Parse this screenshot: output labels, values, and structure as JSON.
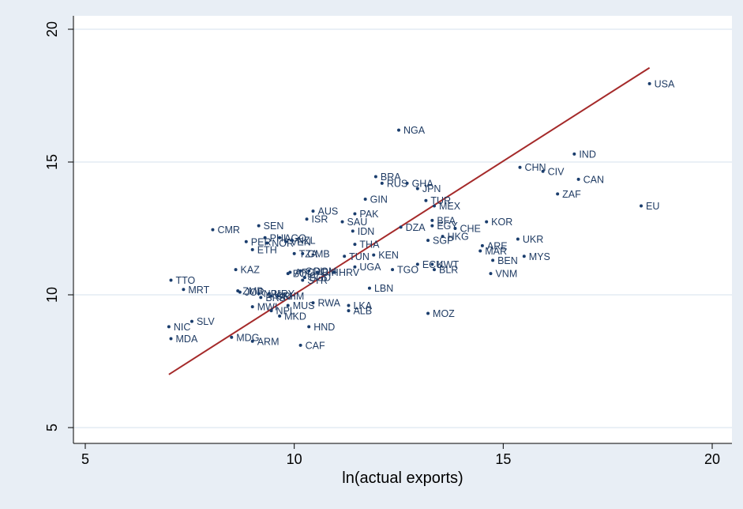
{
  "chart_data": {
    "type": "scatter",
    "title": "",
    "xlabel": "ln(actual exports)",
    "ylabel": "",
    "xlim": [
      5,
      20
    ],
    "ylim": [
      5,
      20
    ],
    "xticks": [
      "5",
      "10",
      "15",
      "20"
    ],
    "yticks": [
      "5",
      "10",
      "15",
      "20"
    ],
    "grid": "horizontal",
    "colors": {
      "outer_background": "#e8eef5",
      "plot_background": "#ffffff",
      "points": "#1a3d6d",
      "fit_line": "#a52a2a",
      "grid": "#dde8f0"
    },
    "fit_line": {
      "x": [
        7.0,
        18.5
      ],
      "y": [
        7.0,
        18.55
      ]
    },
    "points": [
      {
        "label": "USA",
        "x": 18.5,
        "y": 17.95
      },
      {
        "label": "NGA",
        "x": 12.5,
        "y": 16.2
      },
      {
        "label": "IND",
        "x": 16.7,
        "y": 15.3
      },
      {
        "label": "CHN",
        "x": 15.4,
        "y": 14.8
      },
      {
        "label": "CIV",
        "x": 15.95,
        "y": 14.65
      },
      {
        "label": "CAN",
        "x": 16.8,
        "y": 14.35
      },
      {
        "label": "BRA",
        "x": 11.95,
        "y": 14.45
      },
      {
        "label": "RUS",
        "x": 12.1,
        "y": 14.2
      },
      {
        "label": "GHA",
        "x": 12.7,
        "y": 14.2
      },
      {
        "label": "JPN",
        "x": 12.95,
        "y": 14.0
      },
      {
        "label": "ZAF",
        "x": 16.3,
        "y": 13.8
      },
      {
        "label": "EU",
        "x": 18.3,
        "y": 13.35
      },
      {
        "label": "GIN",
        "x": 11.7,
        "y": 13.6
      },
      {
        "label": "TUR",
        "x": 13.15,
        "y": 13.55
      },
      {
        "label": "MEX",
        "x": 13.35,
        "y": 13.35
      },
      {
        "label": "AUS",
        "x": 10.45,
        "y": 13.15
      },
      {
        "label": "PAK",
        "x": 11.45,
        "y": 13.05
      },
      {
        "label": "ISR",
        "x": 10.3,
        "y": 12.85
      },
      {
        "label": "SAU",
        "x": 11.15,
        "y": 12.75
      },
      {
        "label": "BFA",
        "x": 13.3,
        "y": 12.8
      },
      {
        "label": "KOR",
        "x": 14.6,
        "y": 12.75
      },
      {
        "label": "SEN",
        "x": 9.15,
        "y": 12.6
      },
      {
        "label": "DZA",
        "x": 12.55,
        "y": 12.55
      },
      {
        "label": "EGY",
        "x": 13.3,
        "y": 12.6
      },
      {
        "label": "CHE",
        "x": 13.85,
        "y": 12.5
      },
      {
        "label": "CMR",
        "x": 8.05,
        "y": 12.45
      },
      {
        "label": "IDN",
        "x": 11.4,
        "y": 12.4
      },
      {
        "label": "HKG",
        "x": 13.55,
        "y": 12.2
      },
      {
        "label": "PHL",
        "x": 9.3,
        "y": 12.15
      },
      {
        "label": "AGO",
        "x": 9.65,
        "y": 12.15
      },
      {
        "label": "SGP",
        "x": 13.2,
        "y": 12.05
      },
      {
        "label": "UKR",
        "x": 15.35,
        "y": 12.1
      },
      {
        "label": "PER",
        "x": 8.85,
        "y": 12.0
      },
      {
        "label": "NOR",
        "x": 9.35,
        "y": 11.95
      },
      {
        "label": "VEN",
        "x": 9.8,
        "y": 12.0
      },
      {
        "label": "NZL",
        "x": 9.95,
        "y": 12.05
      },
      {
        "label": "THA",
        "x": 11.45,
        "y": 11.9
      },
      {
        "label": "ARE",
        "x": 14.5,
        "y": 11.85
      },
      {
        "label": "ETH",
        "x": 9.0,
        "y": 11.7
      },
      {
        "label": "MAR",
        "x": 14.45,
        "y": 11.65
      },
      {
        "label": "TZA",
        "x": 10.0,
        "y": 11.55
      },
      {
        "label": "GMB",
        "x": 10.2,
        "y": 11.55
      },
      {
        "label": "TUN",
        "x": 11.2,
        "y": 11.45
      },
      {
        "label": "KEN",
        "x": 11.9,
        "y": 11.5
      },
      {
        "label": "MYS",
        "x": 15.5,
        "y": 11.45
      },
      {
        "label": "BEN",
        "x": 14.75,
        "y": 11.3
      },
      {
        "label": "ECU",
        "x": 12.95,
        "y": 11.15
      },
      {
        "label": "KWT",
        "x": 13.3,
        "y": 11.15
      },
      {
        "label": "UGA",
        "x": 11.45,
        "y": 11.05
      },
      {
        "label": "TGO",
        "x": 12.35,
        "y": 10.95
      },
      {
        "label": "BLR",
        "x": 13.35,
        "y": 10.95
      },
      {
        "label": "KAZ",
        "x": 8.6,
        "y": 10.95
      },
      {
        "label": "VNM",
        "x": 14.7,
        "y": 10.8
      },
      {
        "label": "AFG",
        "x": 9.9,
        "y": 10.85
      },
      {
        "label": "BOL",
        "x": 9.85,
        "y": 10.8
      },
      {
        "label": "COL",
        "x": 10.15,
        "y": 10.9
      },
      {
        "label": "DOM",
        "x": 10.35,
        "y": 10.9
      },
      {
        "label": "BIH",
        "x": 10.55,
        "y": 10.85
      },
      {
        "label": "HRV",
        "x": 10.95,
        "y": 10.85
      },
      {
        "label": "BGD",
        "x": 10.25,
        "y": 10.65
      },
      {
        "label": "SYR",
        "x": 10.2,
        "y": 10.55
      },
      {
        "label": "TTO",
        "x": 7.05,
        "y": 10.55
      },
      {
        "label": "LBN",
        "x": 11.8,
        "y": 10.25
      },
      {
        "label": "MRT",
        "x": 7.35,
        "y": 10.2
      },
      {
        "label": "ZMB",
        "x": 8.65,
        "y": 10.15
      },
      {
        "label": "JOR",
        "x": 8.7,
        "y": 10.1
      },
      {
        "label": "NPL",
        "x": 9.15,
        "y": 10.05
      },
      {
        "label": "URY",
        "x": 9.4,
        "y": 10.05
      },
      {
        "label": "BRB",
        "x": 9.2,
        "y": 9.9
      },
      {
        "label": "CRI",
        "x": 9.45,
        "y": 9.95
      },
      {
        "label": "KHM",
        "x": 9.6,
        "y": 9.95
      },
      {
        "label": "RWA",
        "x": 10.45,
        "y": 9.7
      },
      {
        "label": "MUS",
        "x": 9.85,
        "y": 9.6
      },
      {
        "label": "LKA",
        "x": 11.3,
        "y": 9.6
      },
      {
        "label": "MWI",
        "x": 9.0,
        "y": 9.55
      },
      {
        "label": "NPL",
        "x": 9.45,
        "y": 9.4
      },
      {
        "label": "ALB",
        "x": 11.3,
        "y": 9.4
      },
      {
        "label": "MOZ",
        "x": 13.2,
        "y": 9.3
      },
      {
        "label": "MKD",
        "x": 9.65,
        "y": 9.2
      },
      {
        "label": "SLV",
        "x": 7.55,
        "y": 9.0
      },
      {
        "label": "NIC",
        "x": 7.0,
        "y": 8.8
      },
      {
        "label": "HND",
        "x": 10.35,
        "y": 8.8
      },
      {
        "label": "MDG",
        "x": 8.5,
        "y": 8.4
      },
      {
        "label": "MDA",
        "x": 7.05,
        "y": 8.35
      },
      {
        "label": "ARM",
        "x": 9.0,
        "y": 8.25
      },
      {
        "label": "CAF",
        "x": 10.15,
        "y": 8.1
      }
    ]
  }
}
